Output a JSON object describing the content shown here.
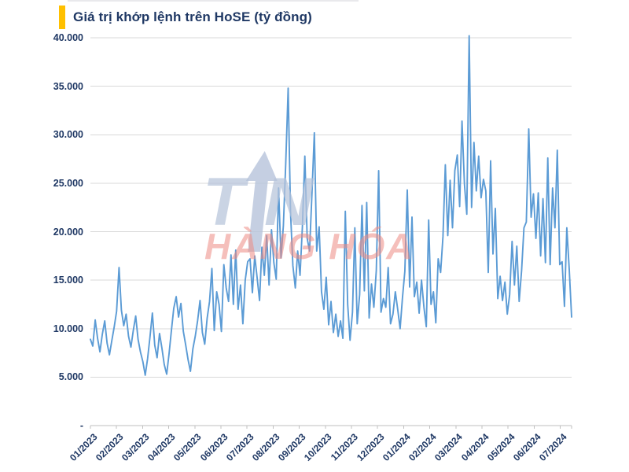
{
  "colors": {
    "accent_bar": "#FFC000",
    "title_text": "#1F3864",
    "axis_text": "#1F3864",
    "line": "#5B9BD5",
    "gridline": "#D9D9D9",
    "axis_line": "#BFBFBF",
    "watermark_blue": "#B7C4DB",
    "watermark_red": "#EE8C84"
  },
  "watermark": {
    "t": "T",
    "n": "N",
    "text": "HÀNG HÓA"
  },
  "chart_data": {
    "type": "line",
    "title": "Giá trị khớp lệnh trên HoSE (tỷ đồng)",
    "ylabel": "",
    "xlabel": "",
    "unit": "tỷ đồng",
    "grid": true,
    "legend_position": "none",
    "line_color": "#5B9BD5",
    "ylim": [
      0,
      40000
    ],
    "y_tick_values": [
      0,
      5000,
      10000,
      15000,
      20000,
      25000,
      30000,
      35000,
      40000
    ],
    "y_tick_labels": [
      "-",
      "5.000",
      "10.000",
      "15.000",
      "20.000",
      "25.000",
      "30.000",
      "35.000",
      "40.000"
    ],
    "x_tick_labels": [
      "01/2023",
      "02/2023",
      "03/2023",
      "04/2023",
      "05/2023",
      "06/2023",
      "07/2023",
      "08/2023",
      "09/2023",
      "10/2023",
      "11/2023",
      "12/2023",
      "01/2024",
      "02/2024",
      "03/2024",
      "04/2024",
      "05/2024",
      "06/2024",
      "07/2024"
    ],
    "points_per_month": 11,
    "values": [
      8900,
      8200,
      10900,
      9000,
      7600,
      9400,
      10800,
      8500,
      7300,
      8800,
      10200,
      11800,
      16300,
      11900,
      10300,
      11500,
      9200,
      8100,
      9800,
      11300,
      8900,
      7600,
      6600,
      5200,
      6900,
      9100,
      11600,
      8300,
      7000,
      9500,
      8000,
      6300,
      5300,
      7400,
      9800,
      12100,
      13300,
      11200,
      12600,
      9700,
      8300,
      6800,
      5600,
      7900,
      9200,
      10800,
      12900,
      9600,
      8400,
      11100,
      12800,
      16200,
      9800,
      13800,
      12500,
      9700,
      16600,
      14200,
      12800,
      17600,
      12500,
      18100,
      12000,
      14500,
      10500,
      15000,
      16900,
      17200,
      13700,
      17500,
      15200,
      12900,
      18400,
      15500,
      19600,
      14500,
      20200,
      16800,
      15100,
      24500,
      17300,
      20600,
      27000,
      34800,
      22000,
      16500,
      14200,
      18000,
      15500,
      20500,
      27800,
      19300,
      18000,
      24000,
      30200,
      18000,
      20500,
      13800,
      12000,
      15300,
      10400,
      12800,
      9600,
      11500,
      9200,
      10800,
      9000,
      22100,
      12500,
      8800,
      11700,
      20400,
      10500,
      13500,
      22700,
      13900,
      23000,
      11100,
      14600,
      12200,
      16000,
      26300,
      11700,
      13100,
      12200,
      16300,
      10500,
      11500,
      13800,
      12000,
      10000,
      13200,
      15900,
      24300,
      14300,
      21500,
      13300,
      14800,
      11600,
      15000,
      12200,
      10200,
      21200,
      12500,
      13800,
      10600,
      17200,
      15800,
      19500,
      26900,
      19600,
      25300,
      20400,
      26300,
      27900,
      22600,
      31400,
      24900,
      21800,
      40200,
      22500,
      29200,
      24200,
      27800,
      23500,
      25400,
      24200,
      15800,
      27300,
      17700,
      22400,
      13100,
      15400,
      12900,
      14800,
      11500,
      13500,
      19000,
      14500,
      18500,
      12800,
      16000,
      20400,
      21000,
      30600,
      21500,
      23900,
      19300,
      24000,
      17500,
      23400,
      16800,
      27600,
      16600,
      24500,
      20400,
      28400,
      16600,
      16900,
      12300,
      20400,
      16100,
      11200
    ]
  }
}
